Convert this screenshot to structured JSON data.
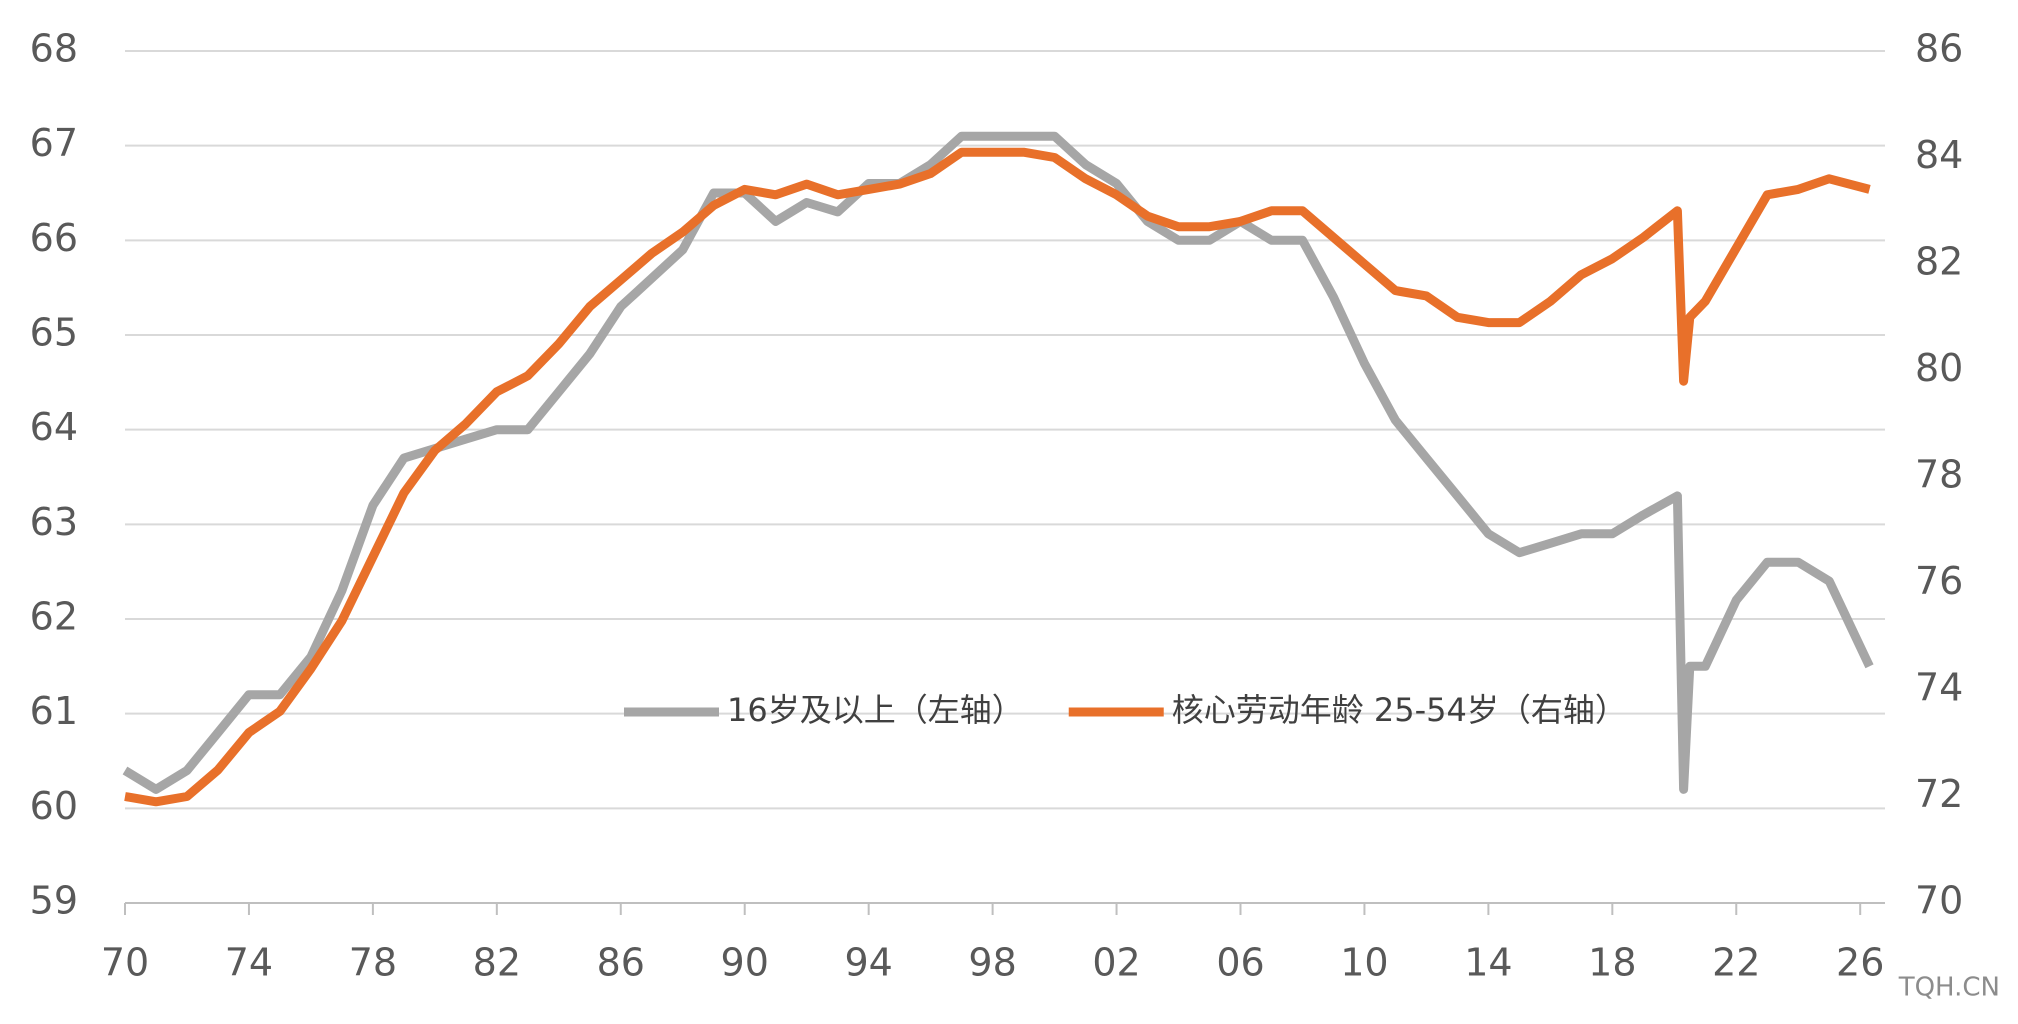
{
  "chart_data": {
    "type": "line",
    "x": [
      1970,
      1971,
      1972,
      1973,
      1974,
      1975,
      1976,
      1977,
      1978,
      1979,
      1980,
      1981,
      1982,
      1983,
      1984,
      1985,
      1986,
      1987,
      1988,
      1989,
      1990,
      1991,
      1992,
      1993,
      1994,
      1995,
      1996,
      1997,
      1998,
      1999,
      2000,
      2001,
      2002,
      2003,
      2004,
      2005,
      2006,
      2007,
      2008,
      2009,
      2010,
      2011,
      2012,
      2013,
      2014,
      2015,
      2016,
      2017,
      2018,
      2019,
      2020.1,
      2020.3,
      2020.5,
      2021,
      2022,
      2023,
      2024,
      2025,
      2026.3
    ],
    "series": [
      {
        "name": "16岁及以上（左轴）",
        "color": "#a6a6a6",
        "axis": "y",
        "values": [
          60.4,
          60.2,
          60.4,
          60.8,
          61.2,
          61.2,
          61.6,
          62.3,
          63.2,
          63.7,
          63.8,
          63.9,
          64.0,
          64.0,
          64.4,
          64.8,
          65.3,
          65.6,
          65.9,
          66.5,
          66.5,
          66.2,
          66.4,
          66.3,
          66.6,
          66.6,
          66.8,
          67.1,
          67.1,
          67.1,
          67.1,
          66.8,
          66.6,
          66.2,
          66.0,
          66.0,
          66.2,
          66.0,
          66.0,
          65.4,
          64.7,
          64.1,
          63.7,
          63.3,
          62.9,
          62.7,
          62.8,
          62.9,
          62.9,
          63.1,
          63.3,
          60.2,
          61.5,
          61.5,
          62.2,
          62.6,
          62.6,
          62.4,
          61.5
        ]
      },
      {
        "name": "核心劳动年龄 25-54岁（右轴）",
        "color": "#e8702a",
        "axis": "y2",
        "values": [
          72.0,
          71.9,
          72.0,
          72.5,
          73.2,
          73.6,
          74.4,
          75.3,
          76.5,
          77.7,
          78.5,
          79.0,
          79.6,
          79.9,
          80.5,
          81.2,
          81.7,
          82.2,
          82.6,
          83.1,
          83.4,
          83.3,
          83.5,
          83.3,
          83.4,
          83.5,
          83.7,
          84.1,
          84.1,
          84.1,
          84.0,
          83.6,
          83.3,
          82.9,
          82.7,
          82.7,
          82.8,
          83.0,
          83.0,
          82.5,
          82.0,
          81.5,
          81.4,
          81.0,
          80.9,
          80.9,
          81.3,
          81.8,
          82.1,
          82.5,
          83.0,
          79.8,
          81.0,
          81.3,
          82.3,
          83.3,
          83.4,
          83.6,
          83.4
        ]
      }
    ],
    "xlim": [
      1970,
      2026.8
    ],
    "xticks": [
      {
        "value": 1970,
        "label": "70"
      },
      {
        "value": 1974,
        "label": "74"
      },
      {
        "value": 1978,
        "label": "78"
      },
      {
        "value": 1982,
        "label": "82"
      },
      {
        "value": 1986,
        "label": "86"
      },
      {
        "value": 1990,
        "label": "90"
      },
      {
        "value": 1994,
        "label": "94"
      },
      {
        "value": 1998,
        "label": "98"
      },
      {
        "value": 2002,
        "label": "02"
      },
      {
        "value": 2006,
        "label": "06"
      },
      {
        "value": 2010,
        "label": "10"
      },
      {
        "value": 2014,
        "label": "14"
      },
      {
        "value": 2018,
        "label": "18"
      },
      {
        "value": 2022,
        "label": "22"
      },
      {
        "value": 2026,
        "label": "26"
      }
    ],
    "ylim": [
      59,
      68
    ],
    "yticks": [
      59,
      60,
      61,
      62,
      63,
      64,
      65,
      66,
      67,
      68
    ],
    "y2lim": [
      70,
      86
    ],
    "y2ticks": [
      70,
      72,
      74,
      76,
      78,
      80,
      82,
      84,
      86
    ],
    "grid": true,
    "watermark": "TQH.CN"
  }
}
